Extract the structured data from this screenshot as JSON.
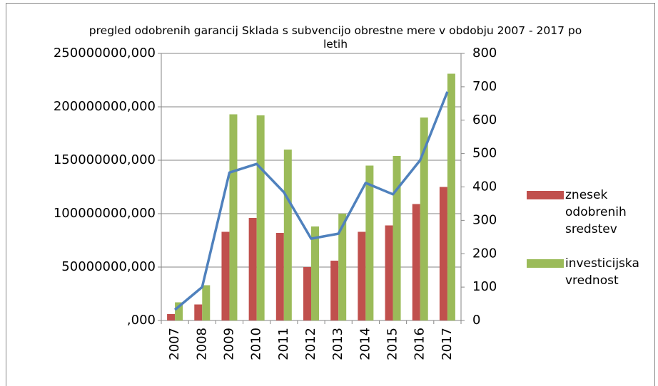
{
  "chart_data": {
    "type": "bar",
    "title": "pregled odobrenih garancij Sklada s subvencijo obrestne mere v obdobju 2007 - 2017 po letih",
    "categories": [
      "2007",
      "2008",
      "2009",
      "2010",
      "2011",
      "2012",
      "2013",
      "2014",
      "2015",
      "2016",
      "2017"
    ],
    "series": [
      {
        "name": "znesek odobrenih sredstev",
        "color": "#c0504d",
        "type": "bar",
        "values": [
          6000000,
          15000000,
          83000000,
          96000000,
          82000000,
          50000000,
          56000000,
          83000000,
          89000000,
          109000000,
          125000000
        ]
      },
      {
        "name": "investicijska vrednost",
        "color": "#9bbb59",
        "type": "bar",
        "values": [
          17000000,
          33000000,
          193000000,
          192000000,
          160000000,
          88000000,
          100000000,
          145000000,
          154000000,
          190000000,
          231000000
        ]
      },
      {
        "color": "#4f81bd",
        "type": "line",
        "axis": "y2",
        "values": [
          32,
          100,
          443,
          469,
          384,
          245,
          260,
          412,
          378,
          480,
          685
        ]
      }
    ],
    "ylim": [
      0,
      250000000
    ],
    "yticks": [
      {
        "value": 0,
        "label": ",000"
      },
      {
        "value": 50000000,
        "label": "50000000,000"
      },
      {
        "value": 100000000,
        "label": "100000000,000"
      },
      {
        "value": 150000000,
        "label": "150000000,000"
      },
      {
        "value": 200000000,
        "label": "200000000,000"
      },
      {
        "value": 250000000,
        "label": "250000000,000"
      }
    ],
    "y2lim": [
      0,
      800
    ],
    "y2ticks": [
      0,
      100,
      200,
      300,
      400,
      500,
      600,
      700,
      800
    ],
    "grid": true,
    "legend": "right"
  }
}
